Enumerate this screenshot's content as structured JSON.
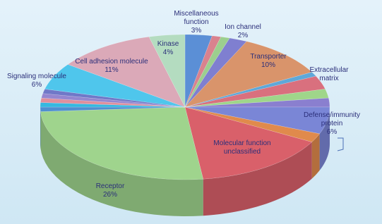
{
  "chart_data": {
    "type": "pie3d",
    "categories": [
      "Miscellaneous function",
      null,
      null,
      "Ion channel",
      "Transporter",
      null,
      "Extracellular matrix",
      null,
      null,
      "Defense/immunity protein",
      null,
      "Molecular function unclassified",
      "Receptor",
      null,
      null,
      null,
      null,
      null,
      "Signaling molecule",
      "Cell adhesion molecule",
      "Kinase"
    ],
    "values": [
      3,
      1,
      1,
      2,
      10,
      1,
      3,
      2,
      2,
      6,
      2,
      15,
      26,
      1,
      1,
      1,
      1,
      1,
      6,
      11,
      4
    ],
    "value_labels": [
      "3%",
      null,
      null,
      "2%",
      "10%",
      null,
      null,
      null,
      null,
      "6%",
      null,
      null,
      "26%",
      null,
      null,
      null,
      null,
      null,
      "6%",
      "11%",
      "4%"
    ],
    "colors": [
      "#5b8fd6",
      "#d9828e",
      "#9ccf8e",
      "#7f7fd0",
      "#d9946b",
      "#5ea8d9",
      "#d9707e",
      "#9fd68a",
      "#8a7fcf",
      "#7a86d6",
      "#e08a4c",
      "#d9606a",
      "#9fd48d",
      "#4f8fd0",
      "#36b8e0",
      "#e08f9c",
      "#9486d0",
      "#7078c8",
      "#4fc6ec",
      "#dba9b8",
      "#b4dcc0"
    ]
  }
}
